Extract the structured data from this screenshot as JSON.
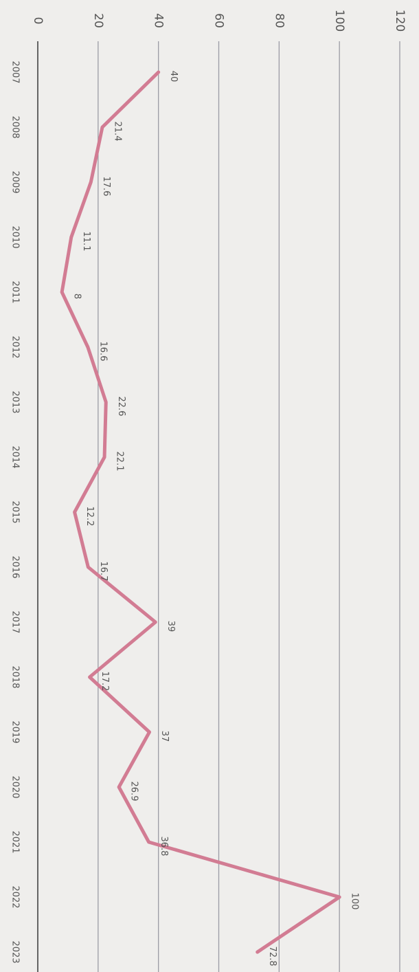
{
  "chart_data": {
    "type": "line",
    "categories": [
      "2007",
      "2008",
      "2009",
      "2010",
      "2011",
      "2012",
      "2013",
      "2014",
      "2015",
      "2016",
      "2017",
      "2018",
      "2019",
      "2020",
      "2021",
      "2022",
      "2023"
    ],
    "series": [
      {
        "color": "#d27c93",
        "values": [
          40,
          21.4,
          17.6,
          11.1,
          8,
          16.6,
          22.6,
          22.1,
          12.2,
          16.7,
          39,
          17.2,
          37,
          26.9,
          36.8,
          100,
          72.8
        ]
      }
    ],
    "ylim": [
      0,
      120
    ],
    "yticks": [
      0,
      20,
      40,
      60,
      80,
      100,
      120
    ],
    "grid": true
  }
}
